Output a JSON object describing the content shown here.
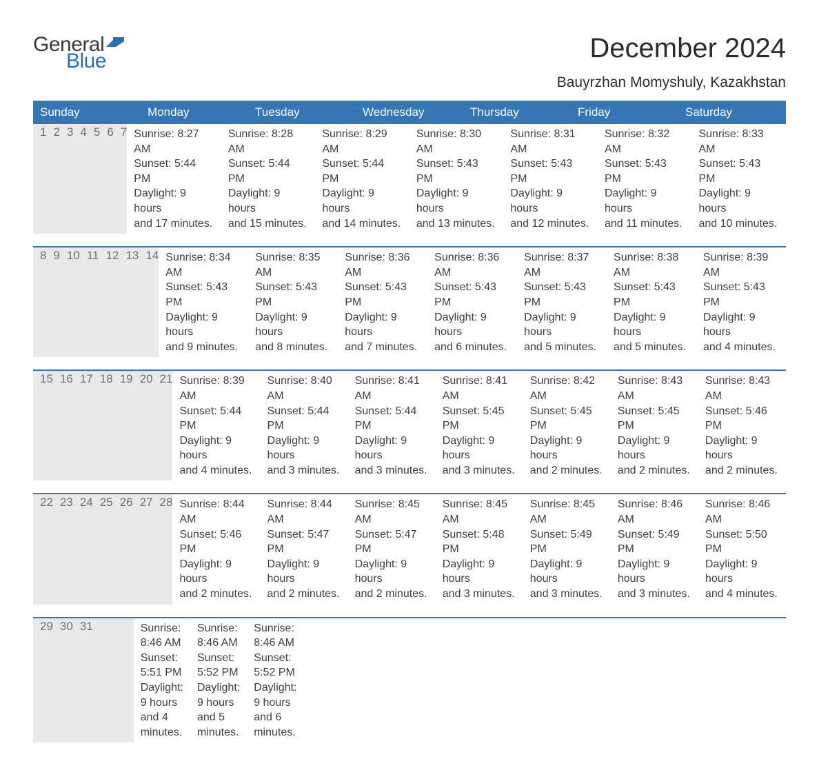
{
  "logo": {
    "text_general": "General",
    "text_blue": "Blue",
    "general_color": "#3a3a3a",
    "blue_color": "#2a6fb3",
    "flag_color": "#2a6fb3"
  },
  "header": {
    "month_title": "December 2024",
    "location": "Bauyrzhan Momyshuly, Kazakhstan"
  },
  "colors": {
    "header_bar_bg": "#3576b7",
    "header_bar_text": "#ffffff",
    "day_number_bg": "#e9e9e9",
    "day_number_text": "#6f6f6f",
    "body_text": "#404040",
    "week_border": "#3576b7",
    "page_bg": "#ffffff"
  },
  "typography": {
    "month_title_fontsize": 40,
    "location_fontsize": 21,
    "weekday_fontsize": 17,
    "day_number_fontsize": 17,
    "day_content_fontsize": 16,
    "font_family": "Arial"
  },
  "weekdays": [
    "Sunday",
    "Monday",
    "Tuesday",
    "Wednesday",
    "Thursday",
    "Friday",
    "Saturday"
  ],
  "weeks": [
    [
      {
        "day": "1",
        "sunrise": "Sunrise: 8:27 AM",
        "sunset": "Sunset: 5:44 PM",
        "daylight1": "Daylight: 9 hours",
        "daylight2": "and 17 minutes."
      },
      {
        "day": "2",
        "sunrise": "Sunrise: 8:28 AM",
        "sunset": "Sunset: 5:44 PM",
        "daylight1": "Daylight: 9 hours",
        "daylight2": "and 15 minutes."
      },
      {
        "day": "3",
        "sunrise": "Sunrise: 8:29 AM",
        "sunset": "Sunset: 5:44 PM",
        "daylight1": "Daylight: 9 hours",
        "daylight2": "and 14 minutes."
      },
      {
        "day": "4",
        "sunrise": "Sunrise: 8:30 AM",
        "sunset": "Sunset: 5:43 PM",
        "daylight1": "Daylight: 9 hours",
        "daylight2": "and 13 minutes."
      },
      {
        "day": "5",
        "sunrise": "Sunrise: 8:31 AM",
        "sunset": "Sunset: 5:43 PM",
        "daylight1": "Daylight: 9 hours",
        "daylight2": "and 12 minutes."
      },
      {
        "day": "6",
        "sunrise": "Sunrise: 8:32 AM",
        "sunset": "Sunset: 5:43 PM",
        "daylight1": "Daylight: 9 hours",
        "daylight2": "and 11 minutes."
      },
      {
        "day": "7",
        "sunrise": "Sunrise: 8:33 AM",
        "sunset": "Sunset: 5:43 PM",
        "daylight1": "Daylight: 9 hours",
        "daylight2": "and 10 minutes."
      }
    ],
    [
      {
        "day": "8",
        "sunrise": "Sunrise: 8:34 AM",
        "sunset": "Sunset: 5:43 PM",
        "daylight1": "Daylight: 9 hours",
        "daylight2": "and 9 minutes."
      },
      {
        "day": "9",
        "sunrise": "Sunrise: 8:35 AM",
        "sunset": "Sunset: 5:43 PM",
        "daylight1": "Daylight: 9 hours",
        "daylight2": "and 8 minutes."
      },
      {
        "day": "10",
        "sunrise": "Sunrise: 8:36 AM",
        "sunset": "Sunset: 5:43 PM",
        "daylight1": "Daylight: 9 hours",
        "daylight2": "and 7 minutes."
      },
      {
        "day": "11",
        "sunrise": "Sunrise: 8:36 AM",
        "sunset": "Sunset: 5:43 PM",
        "daylight1": "Daylight: 9 hours",
        "daylight2": "and 6 minutes."
      },
      {
        "day": "12",
        "sunrise": "Sunrise: 8:37 AM",
        "sunset": "Sunset: 5:43 PM",
        "daylight1": "Daylight: 9 hours",
        "daylight2": "and 5 minutes."
      },
      {
        "day": "13",
        "sunrise": "Sunrise: 8:38 AM",
        "sunset": "Sunset: 5:43 PM",
        "daylight1": "Daylight: 9 hours",
        "daylight2": "and 5 minutes."
      },
      {
        "day": "14",
        "sunrise": "Sunrise: 8:39 AM",
        "sunset": "Sunset: 5:43 PM",
        "daylight1": "Daylight: 9 hours",
        "daylight2": "and 4 minutes."
      }
    ],
    [
      {
        "day": "15",
        "sunrise": "Sunrise: 8:39 AM",
        "sunset": "Sunset: 5:44 PM",
        "daylight1": "Daylight: 9 hours",
        "daylight2": "and 4 minutes."
      },
      {
        "day": "16",
        "sunrise": "Sunrise: 8:40 AM",
        "sunset": "Sunset: 5:44 PM",
        "daylight1": "Daylight: 9 hours",
        "daylight2": "and 3 minutes."
      },
      {
        "day": "17",
        "sunrise": "Sunrise: 8:41 AM",
        "sunset": "Sunset: 5:44 PM",
        "daylight1": "Daylight: 9 hours",
        "daylight2": "and 3 minutes."
      },
      {
        "day": "18",
        "sunrise": "Sunrise: 8:41 AM",
        "sunset": "Sunset: 5:45 PM",
        "daylight1": "Daylight: 9 hours",
        "daylight2": "and 3 minutes."
      },
      {
        "day": "19",
        "sunrise": "Sunrise: 8:42 AM",
        "sunset": "Sunset: 5:45 PM",
        "daylight1": "Daylight: 9 hours",
        "daylight2": "and 2 minutes."
      },
      {
        "day": "20",
        "sunrise": "Sunrise: 8:43 AM",
        "sunset": "Sunset: 5:45 PM",
        "daylight1": "Daylight: 9 hours",
        "daylight2": "and 2 minutes."
      },
      {
        "day": "21",
        "sunrise": "Sunrise: 8:43 AM",
        "sunset": "Sunset: 5:46 PM",
        "daylight1": "Daylight: 9 hours",
        "daylight2": "and 2 minutes."
      }
    ],
    [
      {
        "day": "22",
        "sunrise": "Sunrise: 8:44 AM",
        "sunset": "Sunset: 5:46 PM",
        "daylight1": "Daylight: 9 hours",
        "daylight2": "and 2 minutes."
      },
      {
        "day": "23",
        "sunrise": "Sunrise: 8:44 AM",
        "sunset": "Sunset: 5:47 PM",
        "daylight1": "Daylight: 9 hours",
        "daylight2": "and 2 minutes."
      },
      {
        "day": "24",
        "sunrise": "Sunrise: 8:45 AM",
        "sunset": "Sunset: 5:47 PM",
        "daylight1": "Daylight: 9 hours",
        "daylight2": "and 2 minutes."
      },
      {
        "day": "25",
        "sunrise": "Sunrise: 8:45 AM",
        "sunset": "Sunset: 5:48 PM",
        "daylight1": "Daylight: 9 hours",
        "daylight2": "and 3 minutes."
      },
      {
        "day": "26",
        "sunrise": "Sunrise: 8:45 AM",
        "sunset": "Sunset: 5:49 PM",
        "daylight1": "Daylight: 9 hours",
        "daylight2": "and 3 minutes."
      },
      {
        "day": "27",
        "sunrise": "Sunrise: 8:46 AM",
        "sunset": "Sunset: 5:49 PM",
        "daylight1": "Daylight: 9 hours",
        "daylight2": "and 3 minutes."
      },
      {
        "day": "28",
        "sunrise": "Sunrise: 8:46 AM",
        "sunset": "Sunset: 5:50 PM",
        "daylight1": "Daylight: 9 hours",
        "daylight2": "and 4 minutes."
      }
    ],
    [
      {
        "day": "29",
        "sunrise": "Sunrise: 8:46 AM",
        "sunset": "Sunset: 5:51 PM",
        "daylight1": "Daylight: 9 hours",
        "daylight2": "and 4 minutes."
      },
      {
        "day": "30",
        "sunrise": "Sunrise: 8:46 AM",
        "sunset": "Sunset: 5:52 PM",
        "daylight1": "Daylight: 9 hours",
        "daylight2": "and 5 minutes."
      },
      {
        "day": "31",
        "sunrise": "Sunrise: 8:46 AM",
        "sunset": "Sunset: 5:52 PM",
        "daylight1": "Daylight: 9 hours",
        "daylight2": "and 6 minutes."
      },
      {
        "empty": true
      },
      {
        "empty": true
      },
      {
        "empty": true
      },
      {
        "empty": true
      }
    ]
  ]
}
